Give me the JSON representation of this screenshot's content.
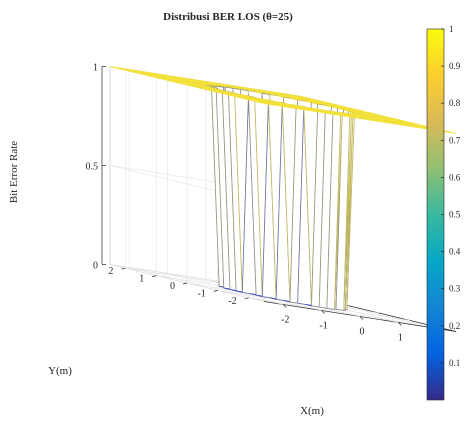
{
  "chart_data": {
    "type": "surface",
    "title": "Distribusi BER LOS (θ=25)",
    "xlabel": "X(m)",
    "ylabel": "Y(m)",
    "zlabel": "Bit Error Rate",
    "xlim": [
      -2.5,
      2.5
    ],
    "ylim": [
      -2.5,
      2.5
    ],
    "zlim": [
      0,
      1
    ],
    "x_ticks": [
      "-2",
      "-1",
      "0",
      "1",
      "2"
    ],
    "y_ticks": [
      "-2",
      "-1",
      "0",
      "1",
      "2"
    ],
    "z_ticks": [
      "0",
      "0.5",
      "1"
    ],
    "colorbar": {
      "ticks": [
        "0.1",
        "0.2",
        "0.3",
        "0.4",
        "0.5",
        "0.6",
        "0.7",
        "0.8",
        "0.9",
        "1"
      ],
      "range": [
        0,
        1
      ],
      "colormap": "parula"
    },
    "surface": {
      "grid_step": 0.2,
      "shape": "BER is approximately 0 inside a roughly circular region around the origin and 1 outside it",
      "inner_radius": 1.35,
      "value_inside": 0,
      "value_outside": 1
    },
    "grid": true
  },
  "colors": {
    "low": "#3e2fa0",
    "high": "#f9fb0e",
    "edge_low": "#3949c8",
    "edge_high": "#f2e13a"
  }
}
